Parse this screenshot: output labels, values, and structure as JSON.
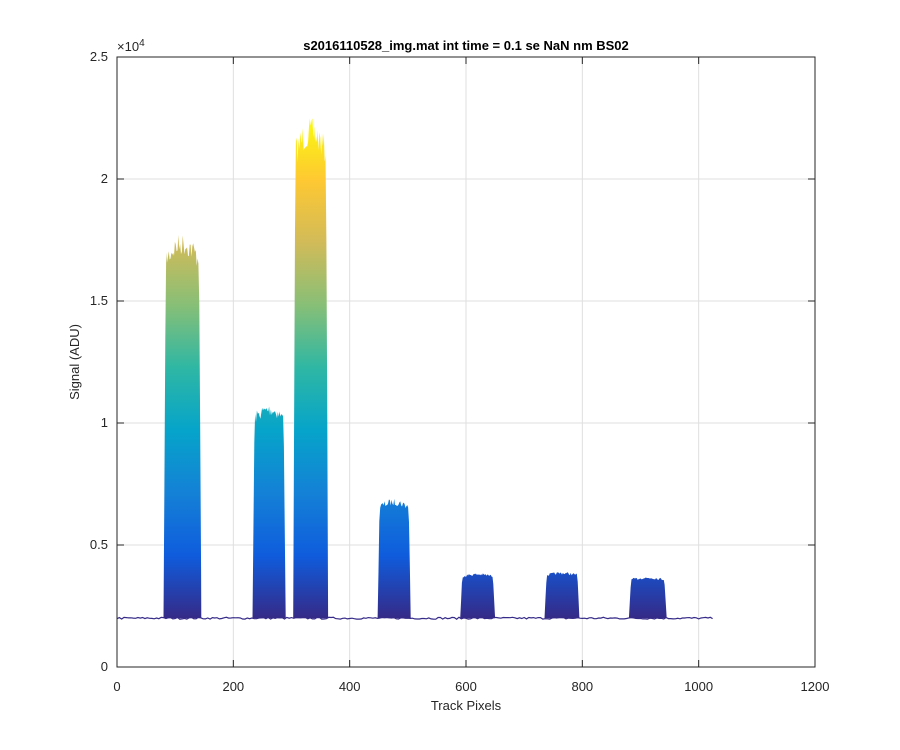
{
  "chart_data": {
    "type": "area",
    "title": "s2016110528_img.mat int time = 0.1 se  NaN nm BS02",
    "xlabel": "Track Pixels",
    "ylabel": "Signal (ADU)",
    "xlim": [
      0,
      1200
    ],
    "ylim": [
      0,
      25000
    ],
    "x_ticks": [
      "0",
      "200",
      "400",
      "600",
      "800",
      "1000",
      "1200"
    ],
    "y_ticks": [
      "0",
      "0.5",
      "1",
      "1.5",
      "2",
      "2.5"
    ],
    "y_exponent": {
      "base": "×10",
      "power": "4"
    },
    "grid": true,
    "baseline": 2000,
    "baseline_x_range": [
      0,
      1024
    ],
    "colormap": [
      "#352a87",
      "#0f5cdd",
      "#1481d6",
      "#06a4ca",
      "#2eb7a4",
      "#87bf77",
      "#d1bb59",
      "#fec832",
      "#f9fb0e"
    ],
    "peaks": [
      {
        "x_start": 80,
        "x_end": 145,
        "peak": 17800
      },
      {
        "x_start": 233,
        "x_end": 290,
        "peak": 10800
      },
      {
        "x_start": 303,
        "x_end": 363,
        "peak": 22500
      },
      {
        "x_start": 448,
        "x_end": 505,
        "peak": 6900
      },
      {
        "x_start": 590,
        "x_end": 650,
        "peak": 3850
      },
      {
        "x_start": 735,
        "x_end": 795,
        "peak": 3900
      },
      {
        "x_start": 880,
        "x_end": 945,
        "peak": 3700
      }
    ]
  }
}
